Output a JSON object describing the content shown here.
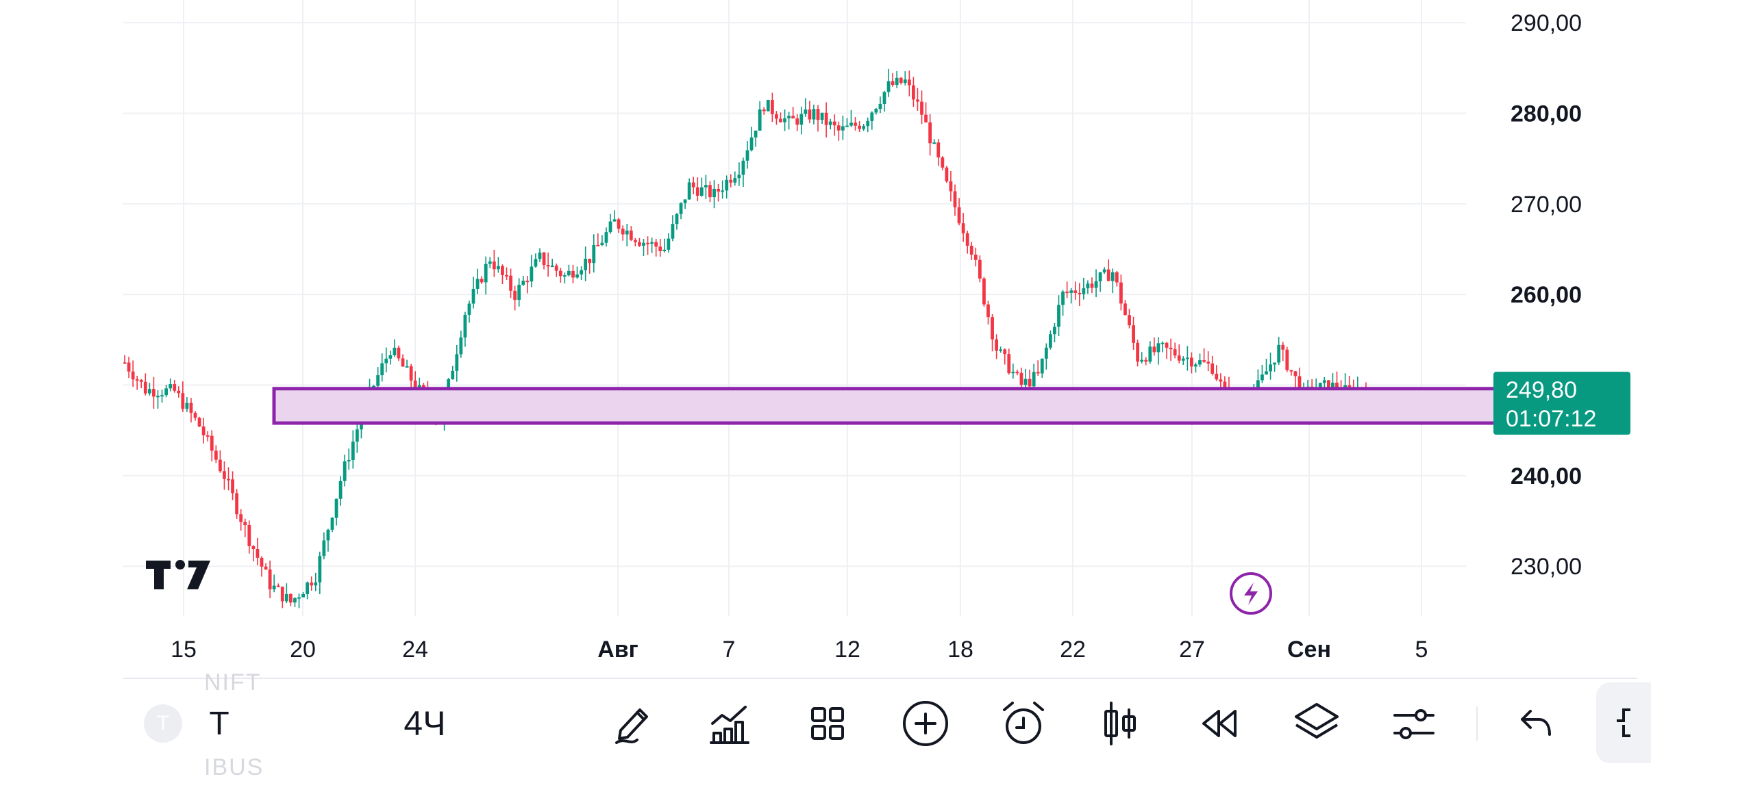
{
  "colors": {
    "up": "#089981",
    "down": "#f23645",
    "zone_fill": "#ead4ee",
    "zone_border": "#8e24aa",
    "price_badge": "#089981",
    "grid": "#eef0f3",
    "axis_text": "#131722",
    "icon": "#131722"
  },
  "chart_data": {
    "type": "candlestick",
    "y_axis": {
      "ticks": [
        {
          "value": 290,
          "label": "290,00",
          "bold": false
        },
        {
          "value": 280,
          "label": "280,00",
          "bold": true
        },
        {
          "value": 270,
          "label": "270,00",
          "bold": false
        },
        {
          "value": 260,
          "label": "260,00",
          "bold": true
        },
        {
          "value": 240,
          "label": "240,00",
          "bold": true
        },
        {
          "value": 230,
          "label": "230,00",
          "bold": false
        }
      ],
      "range": [
        224.5,
        292.5
      ]
    },
    "x_axis": {
      "ticks": [
        {
          "label": "15",
          "bold": false
        },
        {
          "label": "20",
          "bold": false
        },
        {
          "label": "24",
          "bold": false
        },
        {
          "label": "Авг",
          "bold": true
        },
        {
          "label": "7",
          "bold": false
        },
        {
          "label": "12",
          "bold": false
        },
        {
          "label": "18",
          "bold": false
        },
        {
          "label": "22",
          "bold": false
        },
        {
          "label": "27",
          "bold": false
        },
        {
          "label": "Сен",
          "bold": true
        },
        {
          "label": "5",
          "bold": false
        }
      ]
    },
    "last_price": {
      "value": 249.8,
      "label": "249,80",
      "countdown": "01:07:12"
    },
    "support_zone": {
      "low": 245.8,
      "high": 249.6
    },
    "anchors": [
      [
        0,
        252.5
      ],
      [
        5,
        249.5
      ],
      [
        12,
        249.3
      ],
      [
        18,
        245.5
      ],
      [
        24,
        240.0
      ],
      [
        30,
        233.0
      ],
      [
        35,
        228.0
      ],
      [
        40,
        226.0
      ],
      [
        46,
        229.0
      ],
      [
        52,
        239.5
      ],
      [
        58,
        248.0
      ],
      [
        64,
        254.0
      ],
      [
        70,
        250.0
      ],
      [
        76,
        246.0
      ],
      [
        82,
        258.0
      ],
      [
        88,
        264.0
      ],
      [
        94,
        260.0
      ],
      [
        100,
        264.0
      ],
      [
        106,
        262.0
      ],
      [
        112,
        264.0
      ],
      [
        118,
        268.0
      ],
      [
        124,
        266.0
      ],
      [
        130,
        265.0
      ],
      [
        136,
        272.0
      ],
      [
        142,
        271.0
      ],
      [
        148,
        274.0
      ],
      [
        154,
        281.0
      ],
      [
        160,
        279.0
      ],
      [
        166,
        280.0
      ],
      [
        172,
        278.0
      ],
      [
        178,
        279.0
      ],
      [
        184,
        283.0
      ],
      [
        188,
        283.5
      ],
      [
        192,
        280.0
      ],
      [
        198,
        272.0
      ],
      [
        204,
        265.0
      ],
      [
        210,
        254.0
      ],
      [
        216,
        250.0
      ],
      [
        220,
        251.0
      ],
      [
        226,
        260.0
      ],
      [
        232,
        261.0
      ],
      [
        238,
        262.5
      ],
      [
        244,
        253.0
      ],
      [
        250,
        254.0
      ],
      [
        256,
        253.0
      ],
      [
        262,
        252.0
      ],
      [
        266,
        248.0
      ],
      [
        272,
        249.0
      ],
      [
        278,
        254.0
      ],
      [
        284,
        249.0
      ],
      [
        290,
        250.0
      ],
      [
        294,
        249.3
      ],
      [
        299,
        249.8
      ]
    ]
  },
  "toolbar": {
    "symbol_badge": "T",
    "symbol": "T",
    "interval": "4Ч",
    "ghost_top": "NIFT",
    "ghost_bottom": "IBUS",
    "tools": [
      {
        "name": "draw-tool",
        "icon": "pen-icon"
      },
      {
        "name": "indicators",
        "icon": "indicators-icon"
      },
      {
        "name": "layouts",
        "icon": "grid-icon"
      },
      {
        "name": "add",
        "icon": "plus-circle-icon"
      },
      {
        "name": "alert",
        "icon": "alarm-clock-icon"
      },
      {
        "name": "chart-type",
        "icon": "candles-icon"
      },
      {
        "name": "replay",
        "icon": "rewind-icon"
      },
      {
        "name": "layers",
        "icon": "layers-icon"
      },
      {
        "name": "settings",
        "icon": "sliders-icon"
      },
      {
        "name": "undo",
        "icon": "undo-icon"
      }
    ]
  }
}
